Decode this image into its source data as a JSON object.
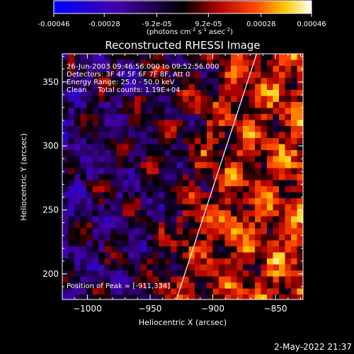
{
  "colorbar": {
    "tick_labels": [
      "-0.00046",
      "-0.00028",
      "-9.2e-05",
      "9.2e-05",
      "0.00028",
      "0.00046"
    ],
    "tick_values": [
      -0.00046,
      -0.00028,
      -9.2e-05,
      9.2e-05,
      0.00028,
      0.00046
    ],
    "range": [
      -0.00046,
      0.00046
    ],
    "units_label": "(photons cm-2 s-1 asec-2)"
  },
  "chart_data": {
    "type": "heatmap",
    "title": "Reconstructed RHESSI Image",
    "xlabel": "Heliocentric X (arcsec)",
    "ylabel": "Heliocentric Y (arcsec)",
    "xlim": [
      -1020,
      -828
    ],
    "ylim": [
      180,
      372
    ],
    "x_ticks": [
      -1000,
      -950,
      -900,
      -850
    ],
    "x_tick_labels": [
      "−1000",
      "−950",
      "−900",
      "−850"
    ],
    "y_ticks": [
      200,
      250,
      300,
      350
    ],
    "y_tick_labels": [
      "200",
      "250",
      "300",
      "350"
    ],
    "annotations": [
      "26-Jun-2003 09:46:56.000 to 09:52:56.000",
      "Detectors: 3F 4F 5F 6F 7F 8F, Att 0",
      "Energy Range: 25.0 - 50.0 keV",
      "Clean     Total counts: 1.19E+04"
    ],
    "peak_label": "Position of Peak = [-911,334]",
    "peak_position": [
      -911,
      334
    ],
    "limb_line": [
      [
        -929,
        180
      ],
      [
        -865,
        372
      ]
    ],
    "grid": false
  },
  "footer": {
    "timestamp": "2-May-2022 21:37"
  }
}
